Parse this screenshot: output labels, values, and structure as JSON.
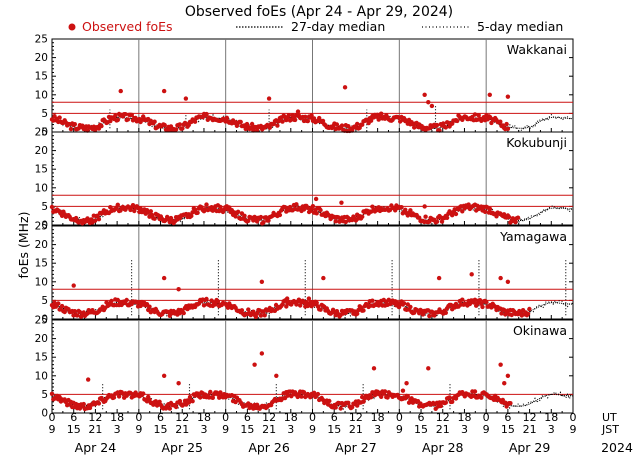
{
  "chart_data": {
    "type": "scatter",
    "title": "Observed foEs (Apr 24 - Apr 29, 2024)",
    "ylabel": "foEs (MHz)",
    "ylim": [
      0,
      25
    ],
    "yticks": [
      0,
      5,
      10,
      15,
      20,
      25
    ],
    "legend": {
      "observed": "Observed foEs",
      "median27": "27-day median",
      "median5": "5-day median"
    },
    "x_axis": {
      "range_hours_ut": [
        0,
        144
      ],
      "ut_label": "UT",
      "jst_label": "JST",
      "ut_tick_labels": [
        "0",
        "6",
        "12",
        "18",
        "0",
        "6",
        "12",
        "18",
        "0",
        "6",
        "12",
        "18",
        "0",
        "6",
        "12",
        "18",
        "0",
        "6",
        "12",
        "18",
        "0",
        "6",
        "12",
        "18",
        "0"
      ],
      "jst_tick_labels": [
        "9",
        "15",
        "21",
        "3",
        "9",
        "15",
        "21",
        "3",
        "9",
        "15",
        "21",
        "3",
        "9",
        "15",
        "21",
        "3",
        "9",
        "15",
        "21",
        "3",
        "9",
        "15",
        "21",
        "3",
        "9"
      ],
      "day_labels": [
        "Apr 24",
        "Apr 25",
        "Apr 26",
        "Apr 27",
        "Apr 28",
        "Apr 29"
      ],
      "year_label": "2024"
    },
    "series": [
      {
        "name": "Wakkanai",
        "red_lines": [
          5,
          8
        ],
        "last_observed_hour": 126,
        "median_base": [
          3.6,
          3.3,
          3.0,
          2.5,
          2.0,
          1.6,
          1.4,
          1.2,
          1.1,
          1.0,
          1.0,
          1.1,
          1.3,
          1.7,
          2.3,
          2.9,
          3.4,
          3.7,
          3.9,
          4.0,
          3.9,
          3.8,
          3.7,
          3.6
        ],
        "daily_spikes": [
          11.0,
          9.0,
          8.0,
          4.0,
          9.5,
          9.5
        ],
        "spikes": [
          [
            19,
            11
          ],
          [
            31,
            11
          ],
          [
            37,
            9
          ],
          [
            60,
            9
          ],
          [
            68,
            5.5
          ],
          [
            67,
            4
          ],
          [
            81,
            12
          ],
          [
            104,
            8
          ],
          [
            103,
            10
          ],
          [
            105,
            7
          ],
          [
            121,
            10
          ],
          [
            126,
            9.5
          ]
        ],
        "median5_spikes": [
          [
            16,
            6
          ],
          [
            37,
            5
          ],
          [
            60,
            6
          ],
          [
            87,
            6
          ],
          [
            106,
            7
          ]
        ]
      },
      {
        "name": "Kokubunji",
        "red_lines": [
          5,
          8
        ],
        "last_observed_hour": 129,
        "median_base": [
          4.2,
          3.9,
          3.5,
          3.0,
          2.4,
          1.9,
          1.6,
          1.4,
          1.3,
          1.2,
          1.2,
          1.4,
          1.7,
          2.2,
          2.8,
          3.4,
          3.9,
          4.3,
          4.5,
          4.6,
          4.6,
          4.5,
          4.4,
          4.3
        ],
        "daily_spikes": [
          7.0,
          5.0,
          7.0,
          6.0,
          5.5,
          5.5
        ],
        "spikes": [
          [
            73,
            7
          ],
          [
            80,
            6
          ],
          [
            103,
            5
          ]
        ],
        "median5_spikes": []
      },
      {
        "name": "Yamagawa",
        "red_lines": [
          5,
          8
        ],
        "last_observed_hour": 132,
        "median_base": [
          4.0,
          3.6,
          3.2,
          2.7,
          2.2,
          1.8,
          1.6,
          1.5,
          1.4,
          1.4,
          1.5,
          1.7,
          2.0,
          2.5,
          3.0,
          3.5,
          3.9,
          4.2,
          4.4,
          4.4,
          4.3,
          4.2,
          4.1,
          4.0
        ],
        "daily_spikes": [
          9.0,
          11.0,
          10.0,
          6.0,
          11.5,
          10.0
        ],
        "spikes": [
          [
            6,
            9
          ],
          [
            31,
            11
          ],
          [
            35,
            8
          ],
          [
            58,
            10
          ],
          [
            65,
            5.5
          ],
          [
            71,
            5.5
          ],
          [
            75,
            11
          ],
          [
            107,
            11
          ],
          [
            116,
            12
          ],
          [
            124,
            11
          ],
          [
            126,
            10
          ]
        ],
        "median5_spikes": [
          [
            22,
            16
          ],
          [
            46,
            16
          ],
          [
            70,
            16
          ],
          [
            94,
            16
          ],
          [
            118,
            16
          ],
          [
            142,
            16
          ]
        ]
      },
      {
        "name": "Okinawa",
        "red_lines": [
          5
        ],
        "last_observed_hour": 127,
        "median_base": [
          4.6,
          4.3,
          3.9,
          3.4,
          2.9,
          2.4,
          2.1,
          1.9,
          1.8,
          1.8,
          1.9,
          2.1,
          2.4,
          2.9,
          3.5,
          4.0,
          4.5,
          4.8,
          5.0,
          5.0,
          4.9,
          4.8,
          4.7,
          4.6
        ],
        "daily_spikes": [
          9.0,
          8.0,
          16.0,
          12.0,
          12.0,
          13.0
        ],
        "spikes": [
          [
            10,
            9
          ],
          [
            31,
            10
          ],
          [
            35,
            8
          ],
          [
            58,
            16
          ],
          [
            56,
            13
          ],
          [
            62,
            10
          ],
          [
            89,
            12
          ],
          [
            97,
            6
          ],
          [
            98,
            8
          ],
          [
            104,
            12
          ],
          [
            124,
            13
          ],
          [
            126,
            10
          ],
          [
            125,
            8
          ]
        ],
        "median5_spikes": [
          [
            14,
            8
          ],
          [
            38,
            8
          ],
          [
            62,
            8
          ],
          [
            86,
            8
          ],
          [
            110,
            8
          ]
        ]
      }
    ]
  }
}
